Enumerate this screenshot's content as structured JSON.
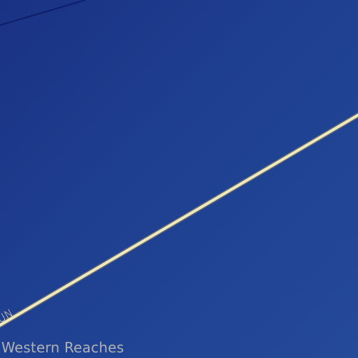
{
  "map": {
    "route_label": "UN",
    "region_label": "Western Reaches"
  },
  "colors": {
    "water": "#1f3f90",
    "route": "#f1e9bb",
    "route_casing": "#8f8a6a",
    "boundary": "#0f1d6b",
    "label": "#c9c6b8"
  }
}
